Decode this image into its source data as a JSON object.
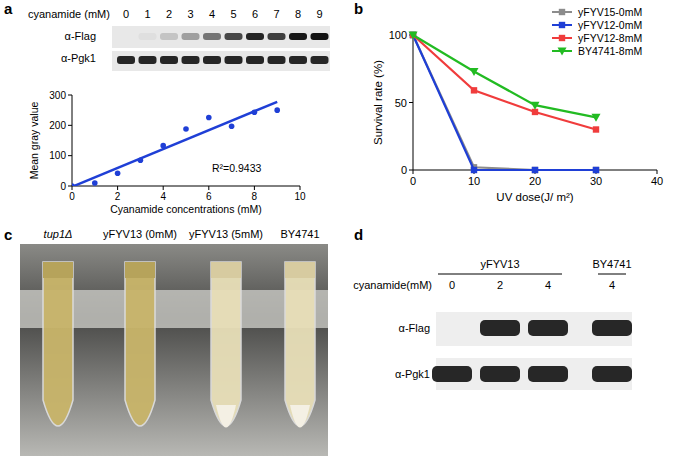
{
  "panels": [
    "a",
    "b",
    "c",
    "d"
  ],
  "blot_a": {
    "header": "cyanamide (mM)",
    "lanes": [
      "0",
      "1",
      "2",
      "3",
      "4",
      "5",
      "6",
      "7",
      "8",
      "9"
    ],
    "rows": [
      "α-Flag",
      "α-Pgk1"
    ]
  },
  "photo_c": {
    "labels": [
      "tup1Δ",
      "yFYV13 (0mM)",
      "yFYV13 (5mM)",
      "BY4741"
    ],
    "flocculent": [
      false,
      false,
      true,
      true
    ]
  },
  "blot_d": {
    "header": "cyanamide(mM)",
    "groups": [
      "yFYV13",
      "BY4741"
    ],
    "group_sizes": [
      3,
      1
    ],
    "lanes": [
      "0",
      "2",
      "4",
      "4"
    ],
    "flag_present": [
      false,
      true,
      true,
      true
    ],
    "rows": [
      "α-Flag",
      "α-Pgk1"
    ]
  },
  "chart_data": [
    {
      "type": "scatter",
      "x_label": "Cyanamide concentrations (mM)",
      "y_label": "Mean gray value",
      "annotations": [
        "R²=0.9433"
      ],
      "x": [
        0,
        1,
        2,
        3,
        4,
        5,
        6,
        7,
        8,
        9
      ],
      "values": [
        0,
        10,
        42,
        85,
        133,
        188,
        226,
        197,
        243,
        250
      ],
      "color": "#1f3fd6",
      "marker": "circle",
      "xlim": [
        0,
        10
      ],
      "xticks": [
        0,
        2,
        4,
        6,
        8,
        10
      ],
      "ylim": [
        0,
        300
      ],
      "yticks": [
        0,
        100,
        200,
        300
      ],
      "grid": false
    },
    {
      "type": "line",
      "x_label": "UV dose(J/ m²)",
      "y_label": "Survival rate (%)",
      "x": [
        0,
        10,
        20,
        30
      ],
      "series": [
        {
          "name": "yFYV15-0mM",
          "color": "#8c8c8c",
          "marker": "square",
          "values": [
            100,
            2,
            0,
            0
          ]
        },
        {
          "name": "yFYV12-0mM",
          "color": "#1f3fd6",
          "marker": "square",
          "values": [
            100,
            0,
            0,
            0
          ]
        },
        {
          "name": "yFYV12-8mM",
          "color": "#f03c3c",
          "marker": "square",
          "values": [
            100,
            59,
            43,
            30
          ]
        },
        {
          "name": "BY4741-8mM",
          "color": "#22bb22",
          "marker": "triangle-down",
          "values": [
            100,
            73,
            48,
            39
          ]
        }
      ],
      "xlim": [
        0,
        40
      ],
      "xticks": [
        0,
        10,
        20,
        30,
        40
      ],
      "ylim": [
        0,
        100
      ],
      "yticks": [
        0,
        50,
        100
      ],
      "legend": "upper right",
      "grid": false
    }
  ]
}
